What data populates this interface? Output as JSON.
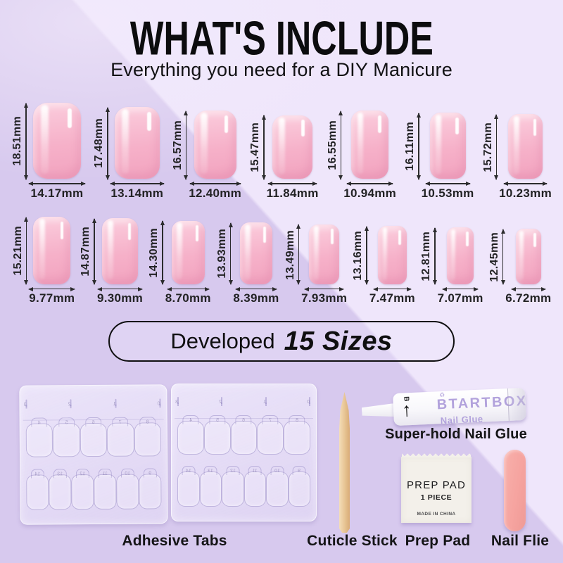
{
  "header": {
    "title": "WHAT'S INCLUDE",
    "subtitle": "Everything you need for a DIY Manicure"
  },
  "size_chart": {
    "unit": "mm",
    "row1": [
      {
        "height": "18.51mm",
        "width": "14.17mm"
      },
      {
        "height": "17.48mm",
        "width": "13.14mm"
      },
      {
        "height": "16.57mm",
        "width": "12.40mm"
      },
      {
        "height": "15.47mm",
        "width": "11.84mm"
      },
      {
        "height": "16.55mm",
        "width": "10.94mm"
      },
      {
        "height": "16.11mm",
        "width": "10.53mm"
      },
      {
        "height": "15.72mm",
        "width": "10.23mm"
      }
    ],
    "row2": [
      {
        "height": "15.21mm",
        "width": "9.77mm"
      },
      {
        "height": "14.87mm",
        "width": "9.30mm"
      },
      {
        "height": "14.30mm",
        "width": "8.70mm"
      },
      {
        "height": "13.93mm",
        "width": "8.39mm"
      },
      {
        "height": "13.49mm",
        "width": "7.93mm"
      },
      {
        "height": "13.16mm",
        "width": "7.47mm"
      },
      {
        "height": "12.81mm",
        "width": "7.07mm"
      },
      {
        "height": "12.45mm",
        "width": "6.72mm"
      }
    ]
  },
  "badge": {
    "prefix": "Developed",
    "highlight": "15 Sizes"
  },
  "kit": {
    "adhesive_tabs": {
      "label": "Adhesive Tabs",
      "sheet_count": 2,
      "tab_rows": [
        [
          "3",
          "2",
          "1",
          "0"
        ],
        [
          "4",
          "5",
          "6",
          "7",
          "8"
        ],
        [
          "14",
          "13",
          "12",
          "11",
          "10",
          "9"
        ]
      ]
    },
    "nail_glue": {
      "label": "Super-hold Nail Glue",
      "brand": "BTARTBOX",
      "product_name": "Nail Glue",
      "up_arrow": "↑",
      "recycle_icon": "♻",
      "side_mark": "B"
    },
    "cuticle_stick": {
      "label": "Cuticle Stick"
    },
    "prep_pad": {
      "label": "Prep Pad",
      "packet_title": "PREP PAD",
      "packet_quantity": "1 PIECE",
      "packet_origin": "MADE IN CHINA"
    },
    "nail_file": {
      "label": "Nail Flie"
    }
  },
  "colors": {
    "background": "#d7c9ee",
    "background_highlight": "#f0e7fb",
    "nail_pink": "#f6b1c9",
    "nail_pink_deep": "#f2a3bf",
    "nail_pink_light": "#fbcddd",
    "brand_purple": "#b2a2dc",
    "file_pink": "#f6a4a0",
    "stick_wood": "#e9c89c",
    "text": "#18181a"
  }
}
